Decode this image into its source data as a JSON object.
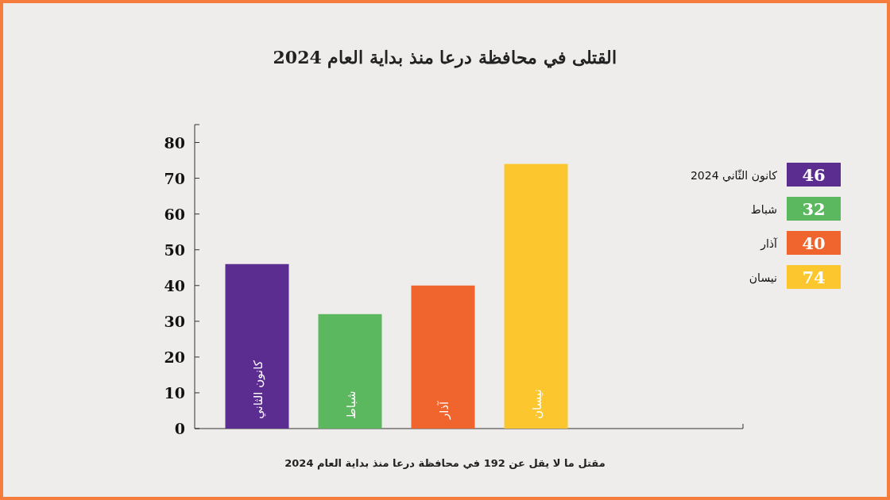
{
  "chart_data": [
    {
      "type": "bar",
      "title": "القتلى في محافظة درعا منذ بداية العام 2024",
      "categories": [
        "كانون الثاني",
        "شباط",
        "آذار",
        "نيسان"
      ],
      "values": [
        46,
        32,
        40,
        74
      ],
      "colors": [
        "#5c2d91",
        "#5cb85f",
        "#f0642d",
        "#fcc72e"
      ],
      "ylim": [
        0,
        85
      ],
      "yticks": [
        0,
        10,
        20,
        30,
        40,
        50,
        60,
        70,
        80
      ],
      "annotations": [
        "مقتل ما لا يقل عن 192 في محافظة درعا منذ بداية العام 2024"
      ]
    },
    {
      "type": "other",
      "categories": [
        "كانون الثّاني 2024",
        "شباط",
        "آذار",
        "نيسان"
      ],
      "values": [
        46,
        32,
        40,
        74
      ],
      "data_labels": true,
      "colors": [
        "#5c2d91",
        "#5cb85f",
        "#f0642d",
        "#fcc72e"
      ]
    }
  ]
}
